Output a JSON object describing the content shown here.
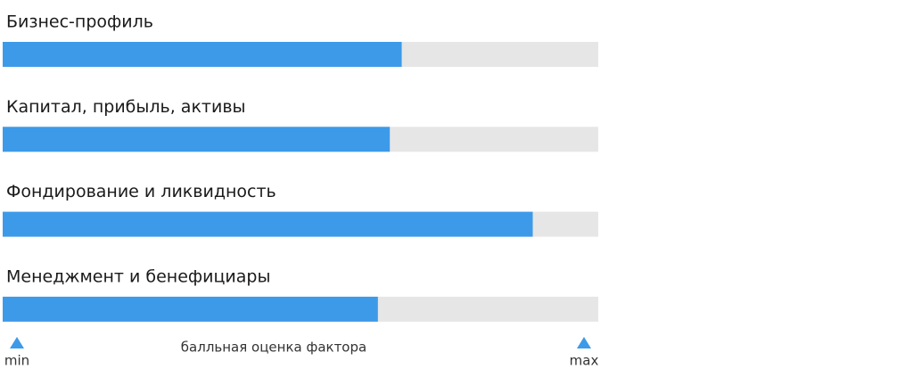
{
  "chart_data": {
    "type": "bar",
    "orientation": "horizontal",
    "categories": [
      "Бизнес-профиль",
      "Капитал, прибыль, активы",
      "Фондирование и ликвидность",
      "Менеджмент и бенефициары"
    ],
    "values": [
      67,
      65,
      89,
      63
    ],
    "color": "#3d9ae8",
    "track_color": "#e6e6e6",
    "xlim": [
      0,
      100
    ],
    "xticks": [
      {
        "value": 0,
        "label": "min"
      },
      {
        "value": 100,
        "label": "max"
      }
    ],
    "xlabel": "балльная оценка фактора"
  }
}
